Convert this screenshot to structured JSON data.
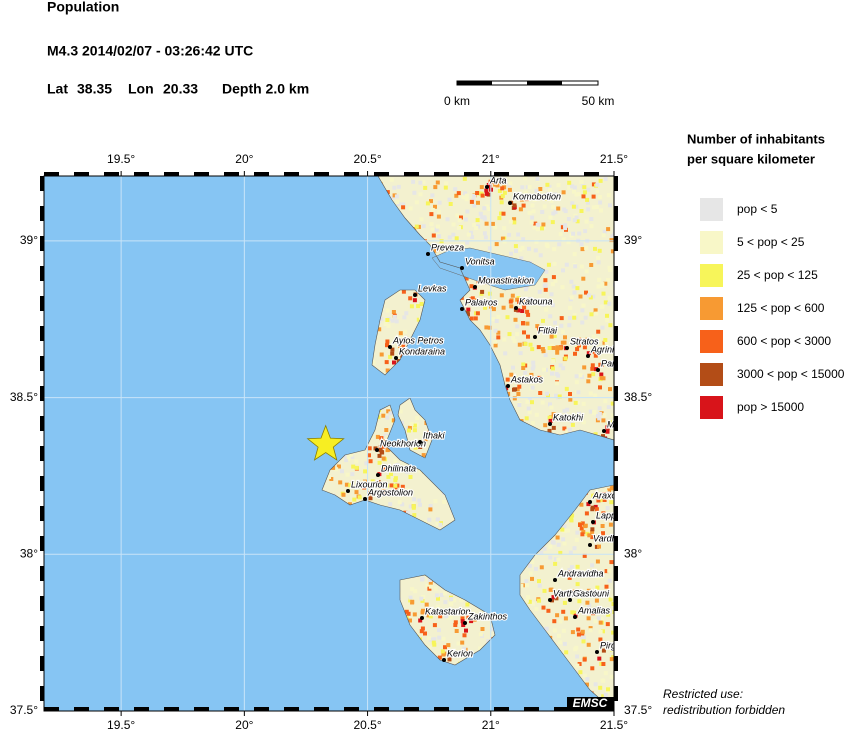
{
  "header": {
    "title": "Population",
    "event": "M4.3  2014/02/07 - 03:26:42 UTC",
    "lat": {
      "label": "Lat",
      "value": 38.35
    },
    "lon": {
      "label": "Lon",
      "value": 20.33
    },
    "depth": "Depth  2.0 km"
  },
  "scale_bar": {
    "start": "0 km",
    "end": "50 km"
  },
  "map": {
    "xlim": [
      19.187,
      21.5
    ],
    "ylim": [
      37.5,
      39.207
    ],
    "xticks": [
      {
        "value": 19.5,
        "label": "19.5°"
      },
      {
        "value": 20,
        "label": "20°"
      },
      {
        "value": 20.5,
        "label": "20.5°"
      },
      {
        "value": 21,
        "label": "21°"
      },
      {
        "value": 21.5,
        "label": "21.5°"
      }
    ],
    "yticks": [
      {
        "value": 37.5,
        "label": "37.5°"
      },
      {
        "value": 38,
        "label": "38°"
      },
      {
        "value": 38.5,
        "label": "38.5°"
      },
      {
        "value": 39,
        "label": "39°"
      }
    ],
    "grid": true,
    "cities": [
      "Arta",
      "Komobotion",
      "Preveza",
      "Vonitsa",
      "Monastirakion",
      "Levkas",
      "Palairos",
      "Katouna",
      "Fitiai",
      "Stratos",
      "Agrinion",
      "Panaitolion",
      "Ayios Petros",
      "Kondaraina",
      "Astakos",
      "Mesolongion",
      "Katokhi",
      "Neokhorion",
      "Ithaki",
      "Dhilinata",
      "Lixourion",
      "Argostolion",
      "Araxos",
      "Lappa",
      "Vardha",
      "Andravidha",
      "Vartholomion",
      "Gastouni",
      "Amalias",
      "Katastarion",
      "Zakinthos",
      "Kerion",
      "Pirgos"
    ],
    "logo": "EMSC"
  },
  "legend": {
    "title_lines": [
      "Number of inhabitants",
      "per square kilometer"
    ],
    "items": [
      {
        "label": "pop < 5",
        "color": "#e6e6e6"
      },
      {
        "label": "5 < pop < 25",
        "color": "#f8f7c8"
      },
      {
        "label": "25 < pop < 125",
        "color": "#f7f55a"
      },
      {
        "label": "125 < pop < 600",
        "color": "#f79a33"
      },
      {
        "label": "600 < pop < 3000",
        "color": "#f7611a"
      },
      {
        "label": "3000 < pop < 15000",
        "color": "#b34d17"
      },
      {
        "label": "pop > 15000",
        "color": "#d8141a"
      }
    ]
  },
  "notice": [
    "Restricted use:",
    "redistribution forbidden"
  ]
}
